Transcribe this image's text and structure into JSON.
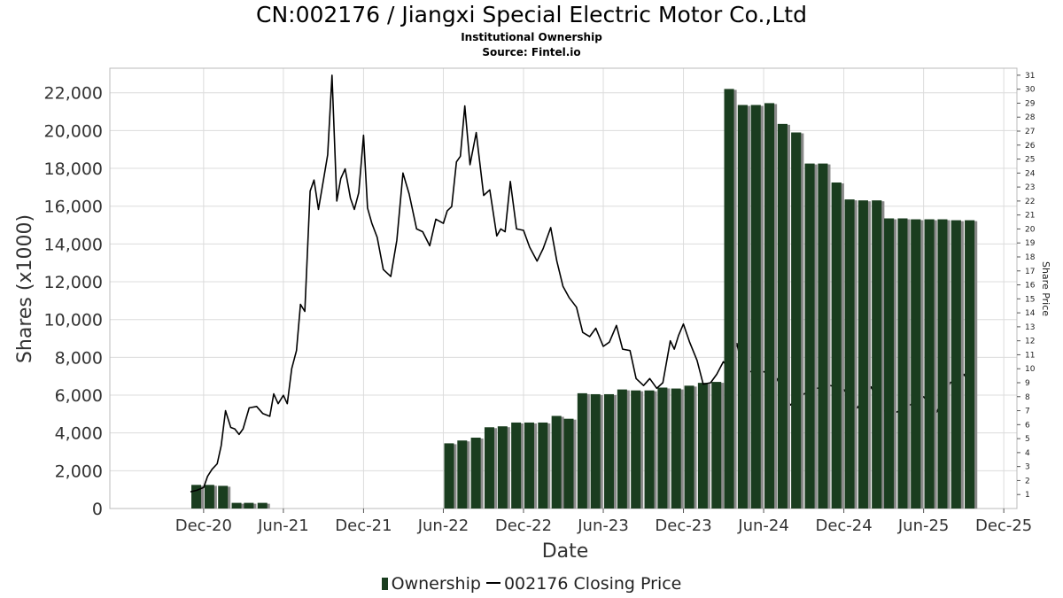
{
  "header": {
    "title": "CN:002176 / Jiangxi Special Electric Motor Co.,Ltd",
    "subtitle": "Institutional Ownership",
    "source": "Source: Fintel.io"
  },
  "legend": {
    "ownership": "Ownership",
    "price": "002176 Closing Price"
  },
  "colors": {
    "bar": "#1a3d1f",
    "bar_shadow": "#8a8a8a",
    "line": "#000000",
    "grid": "#dcdcdc"
  },
  "chart_data": {
    "type": "bar",
    "title": "CN:002176 / Jiangxi Special Electric Motor Co.,Ltd",
    "subtitle": "Institutional Ownership",
    "xlabel": "Date",
    "ylabel": "Shares (x1000)",
    "y2label": "Share Price",
    "ylim": [
      0,
      23300
    ],
    "y2lim": [
      0,
      31.5
    ],
    "grid": true,
    "legend_position": "bottom",
    "x_ticks": [
      "Dec-20",
      "Jun-21",
      "Dec-21",
      "Jun-22",
      "Dec-22",
      "Jun-23",
      "Dec-23",
      "Jun-24",
      "Dec-24",
      "Jun-25",
      "Dec-25"
    ],
    "y_ticks": [
      "0",
      "2,000",
      "4,000",
      "6,000",
      "8,000",
      "10,000",
      "12,000",
      "14,000",
      "16,000",
      "18,000",
      "20,000",
      "22,000"
    ],
    "y2_ticks": [
      "1",
      "2",
      "3",
      "4",
      "5",
      "6",
      "7",
      "8",
      "9",
      "10",
      "11",
      "12",
      "13",
      "14",
      "15",
      "16",
      "17",
      "18",
      "19",
      "20",
      "21",
      "22",
      "23",
      "24",
      "25",
      "26",
      "27",
      "28",
      "29",
      "30",
      "31"
    ],
    "series": [
      {
        "name": "Ownership",
        "kind": "bar",
        "x": [
          "2020-11-01",
          "2020-12-01",
          "2021-01-01",
          "2021-02-01",
          "2021-03-01",
          "2021-04-01",
          "2022-06-01",
          "2022-07-01",
          "2022-08-01",
          "2022-09-01",
          "2022-10-01",
          "2022-11-01",
          "2022-12-01",
          "2023-01-01",
          "2023-02-01",
          "2023-03-01",
          "2023-04-01",
          "2023-05-01",
          "2023-06-01",
          "2023-07-01",
          "2023-08-01",
          "2023-09-01",
          "2023-10-01",
          "2023-11-01",
          "2023-12-01",
          "2024-01-01",
          "2024-02-01",
          "2024-03-01",
          "2024-04-01",
          "2024-05-01",
          "2024-06-01",
          "2024-07-01",
          "2024-08-01",
          "2024-09-01",
          "2024-10-01",
          "2024-11-01",
          "2024-12-01",
          "2025-01-01",
          "2025-02-01",
          "2025-03-01",
          "2025-04-01",
          "2025-05-01",
          "2025-06-01",
          "2025-07-01",
          "2025-08-01",
          "2025-09-01"
        ],
        "values": [
          1250,
          1250,
          1200,
          300,
          300,
          300,
          3450,
          3600,
          3750,
          4300,
          4350,
          4550,
          4550,
          4550,
          4900,
          4750,
          6100,
          6050,
          6050,
          6300,
          6250,
          6250,
          6400,
          6350,
          6500,
          6650,
          6700,
          22200,
          21350,
          21350,
          21450,
          20350,
          19900,
          18250,
          18250,
          17250,
          16350,
          16300,
          16300,
          15350,
          15350,
          15300,
          15300,
          15300,
          15250,
          15250
        ]
      },
      {
        "name": "002176 Closing Price",
        "kind": "line",
        "axis": "right",
        "x": [
          "2020-11-01",
          "2020-11-15",
          "2020-12-01",
          "2020-12-10",
          "2020-12-20",
          "2021-01-01",
          "2021-01-10",
          "2021-01-20",
          "2021-02-01",
          "2021-02-10",
          "2021-02-20",
          "2021-03-01",
          "2021-03-15",
          "2021-04-01",
          "2021-04-15",
          "2021-05-01",
          "2021-05-10",
          "2021-05-20",
          "2021-06-01",
          "2021-06-10",
          "2021-06-20",
          "2021-07-01",
          "2021-07-10",
          "2021-07-20",
          "2021-08-01",
          "2021-08-10",
          "2021-08-20",
          "2021-09-01",
          "2021-09-10",
          "2021-09-20",
          "2021-10-01",
          "2021-10-10",
          "2021-10-20",
          "2021-11-01",
          "2021-11-10",
          "2021-11-20",
          "2021-12-01",
          "2021-12-10",
          "2021-12-20",
          "2022-01-01",
          "2022-01-15",
          "2022-02-01",
          "2022-02-15",
          "2022-03-01",
          "2022-03-15",
          "2022-04-01",
          "2022-04-15",
          "2022-05-01",
          "2022-05-15",
          "2022-06-01",
          "2022-06-10",
          "2022-06-20",
          "2022-07-01",
          "2022-07-10",
          "2022-07-20",
          "2022-08-01",
          "2022-08-15",
          "2022-09-01",
          "2022-09-15",
          "2022-10-01",
          "2022-10-10",
          "2022-10-20",
          "2022-11-01",
          "2022-11-15",
          "2022-12-01",
          "2022-12-15",
          "2023-01-01",
          "2023-01-15",
          "2023-02-01",
          "2023-02-15",
          "2023-03-01",
          "2023-03-15",
          "2023-04-01",
          "2023-04-15",
          "2023-05-01",
          "2023-05-15",
          "2023-06-01",
          "2023-06-15",
          "2023-07-01",
          "2023-07-15",
          "2023-08-01",
          "2023-08-15",
          "2023-09-01",
          "2023-09-15",
          "2023-10-01",
          "2023-10-15",
          "2023-11-01",
          "2023-11-10",
          "2023-11-20",
          "2023-12-01",
          "2023-12-15",
          "2024-01-01",
          "2024-01-15",
          "2024-02-01",
          "2024-02-15",
          "2024-03-01",
          "2024-03-15",
          "2024-04-01",
          "2024-04-15",
          "2024-05-01",
          "2024-06-01",
          "2024-07-01",
          "2024-08-01",
          "2024-09-01",
          "2024-10-01",
          "2024-11-01",
          "2024-12-01",
          "2025-01-01",
          "2025-02-01",
          "2025-03-01",
          "2025-04-01",
          "2025-05-01",
          "2025-06-01",
          "2025-07-01",
          "2025-08-01",
          "2025-09-01",
          "2025-09-20"
        ],
        "values": [
          1.2,
          1.3,
          1.5,
          2.3,
          2.8,
          3.2,
          4.5,
          7.0,
          5.8,
          5.7,
          5.3,
          5.7,
          7.2,
          7.3,
          6.8,
          6.6,
          8.2,
          7.5,
          8.1,
          7.5,
          10.0,
          11.3,
          14.6,
          14.1,
          22.7,
          23.5,
          21.4,
          23.6,
          25.3,
          31.0,
          22.0,
          23.6,
          24.3,
          22.2,
          21.4,
          22.6,
          26.7,
          21.5,
          20.4,
          19.4,
          17.1,
          16.6,
          19.2,
          24.0,
          22.5,
          20.0,
          19.8,
          18.8,
          20.7,
          20.4,
          21.3,
          21.6,
          24.8,
          25.2,
          28.8,
          24.6,
          26.9,
          22.4,
          22.8,
          19.5,
          20.0,
          19.8,
          23.4,
          20.0,
          19.9,
          18.7,
          17.7,
          18.6,
          20.1,
          17.7,
          15.9,
          15.1,
          14.4,
          12.6,
          12.3,
          12.9,
          11.6,
          11.9,
          13.1,
          11.4,
          11.3,
          9.3,
          8.8,
          9.3,
          8.6,
          9.0,
          12.0,
          11.4,
          12.4,
          13.2,
          11.9,
          10.6,
          8.9,
          9.0,
          9.6,
          10.5,
          10.0,
          11.8,
          9.8,
          9.8,
          9.8,
          9.3,
          7.4,
          8.2,
          8.6,
          8.8,
          8.5,
          7.2,
          8.7,
          7.0,
          6.9,
          7.4,
          8.0,
          6.9,
          9.0,
          9.6,
          8.7
        ]
      }
    ]
  }
}
